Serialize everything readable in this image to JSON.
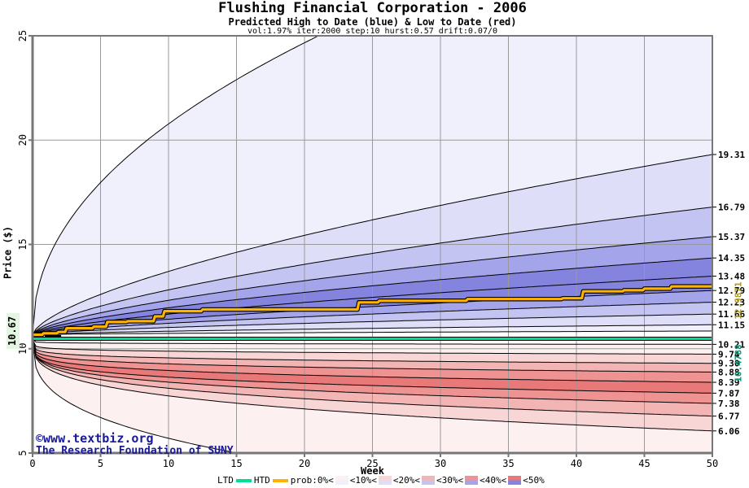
{
  "header": {
    "title": "Flushing Financial Corporation - 2006",
    "subtitle": "Predicted High to Date (blue) &  Low to Date (red)",
    "params": "vol:1.97% iter:2000 step:10 hurst:0.57 drift:0.07/0"
  },
  "watermark": {
    "line1": "©www.textbiz.org",
    "line2": "The Research Foundation of SUNY"
  },
  "axis": {
    "xlabel": "Week",
    "ylabel": "Price ($)",
    "x_ticks": [
      "0",
      "5",
      "10",
      "15",
      "20",
      "25",
      "30",
      "35",
      "40",
      "45",
      "50"
    ],
    "y_ticks": [
      "5",
      "10",
      "15",
      "20",
      "25"
    ],
    "xlim": [
      0,
      50
    ],
    "ylim": [
      5,
      25
    ]
  },
  "annotations": {
    "start_price": "10.67",
    "htd_final": "12.9871",
    "ltd_value": "10.4788"
  },
  "legend": {
    "ltd_label": "LTD",
    "htd_label": "HTD",
    "prob_labels": [
      "prob:0%<",
      "<10%<",
      "<20%<",
      "<30%<",
      "<40%<",
      "<50%"
    ]
  },
  "palette": {
    "blue_bands": [
      "#F0F0FC",
      "#DEDEF8",
      "#C4C4F2",
      "#A4A4EA",
      "#8484DE"
    ],
    "red_bands": [
      "#FDF0F0",
      "#F9D6D6",
      "#F3B4B4",
      "#EE9292",
      "#E97878"
    ],
    "ltd_line": "#00DD99",
    "htd_line": "#FFB300",
    "ltd_text": "#009977",
    "htd_text": "#B89C00",
    "grid": "#999999",
    "frame": "#777777",
    "copyright": "#1A1A99",
    "start_label_bg": "#E2F6E2"
  },
  "chart_data": {
    "type": "area",
    "subtype": "probability-fan",
    "title": "Flushing Financial Corporation - 2006",
    "xlabel": "Week",
    "ylabel": "Price ($)",
    "x_range": [
      0,
      50
    ],
    "y_range": [
      5,
      25
    ],
    "grid": true,
    "high_boundaries": [
      {
        "label": "max",
        "start": 10.67,
        "end": 32.2,
        "alpha": 0.47
      },
      {
        "label": "19.31",
        "start": 10.67,
        "end": 19.31,
        "alpha": 0.65
      },
      {
        "label": "16.79",
        "start": 10.67,
        "end": 16.79,
        "alpha": 0.65
      },
      {
        "label": "15.37",
        "start": 10.67,
        "end": 15.37,
        "alpha": 0.65
      },
      {
        "label": "14.35",
        "start": 10.67,
        "end": 14.35,
        "alpha": 0.65
      },
      {
        "label": "13.48",
        "start": 10.67,
        "end": 13.48,
        "alpha": 0.65
      },
      {
        "label": "12.79",
        "start": 10.67,
        "end": 12.79,
        "alpha": 0.65
      },
      {
        "label": "12.23",
        "start": 10.67,
        "end": 12.23,
        "alpha": 0.65
      },
      {
        "label": "11.66",
        "start": 10.67,
        "end": 11.66,
        "alpha": 0.65
      },
      {
        "label": "11.15",
        "start": 10.67,
        "end": 11.15,
        "alpha": 0.65
      },
      {
        "label": "min",
        "start": 10.67,
        "end": 10.85,
        "alpha": 0.65
      }
    ],
    "high_band_color_index": [
      0,
      1,
      2,
      3,
      4,
      4,
      3,
      2,
      1,
      0
    ],
    "low_boundaries": [
      {
        "label": "10.21",
        "start": 10.45,
        "end": 10.21,
        "alpha": 0.12
      },
      {
        "label": "9.74",
        "start": 10.45,
        "end": 9.74,
        "alpha": 0.14
      },
      {
        "label": "9.30",
        "start": 10.45,
        "end": 9.3,
        "alpha": 0.16
      },
      {
        "label": "8.88",
        "start": 10.45,
        "end": 8.88,
        "alpha": 0.18
      },
      {
        "label": "8.39",
        "start": 10.45,
        "end": 8.39,
        "alpha": 0.2
      },
      {
        "label": "7.87",
        "start": 10.45,
        "end": 7.87,
        "alpha": 0.22
      },
      {
        "label": "7.38",
        "start": 10.45,
        "end": 7.38,
        "alpha": 0.25
      },
      {
        "label": "6.77",
        "start": 10.45,
        "end": 6.77,
        "alpha": 0.28
      },
      {
        "label": "6.06",
        "start": 10.45,
        "end": 6.06,
        "alpha": 0.3
      },
      {
        "label": "min",
        "start": 10.45,
        "end": 2.25,
        "alpha": 0.34
      }
    ],
    "low_band_color_index": [
      0,
      1,
      2,
      3,
      4,
      3,
      2,
      1,
      0
    ],
    "htd_median_steps": [
      [
        0,
        10.67
      ],
      [
        0.7,
        10.67
      ],
      [
        0.8,
        10.74
      ],
      [
        1.8,
        10.74
      ],
      [
        1.9,
        10.8
      ],
      [
        2.4,
        10.8
      ],
      [
        2.5,
        10.98
      ],
      [
        4.4,
        10.98
      ],
      [
        4.5,
        11.06
      ],
      [
        5.4,
        11.06
      ],
      [
        5.5,
        11.28
      ],
      [
        6.9,
        11.28
      ],
      [
        7,
        11.32
      ],
      [
        8.9,
        11.32
      ],
      [
        9,
        11.55
      ],
      [
        9.6,
        11.55
      ],
      [
        9.7,
        11.8
      ],
      [
        12.4,
        11.8
      ],
      [
        12.5,
        11.88
      ],
      [
        23.9,
        11.88
      ],
      [
        24,
        12.22
      ],
      [
        25.4,
        12.22
      ],
      [
        25.5,
        12.3
      ],
      [
        31.9,
        12.3
      ],
      [
        32,
        12.38
      ],
      [
        38.9,
        12.38
      ],
      [
        39,
        12.42
      ],
      [
        40.4,
        12.42
      ],
      [
        40.5,
        12.75
      ],
      [
        43.4,
        12.75
      ],
      [
        43.5,
        12.8
      ],
      [
        44.9,
        12.8
      ],
      [
        45,
        12.88
      ],
      [
        46.9,
        12.88
      ],
      [
        47,
        12.9871
      ],
      [
        50,
        12.9871
      ]
    ],
    "ltd_line_value": 10.4788,
    "start_marker": {
      "w1": 0.9,
      "w2": 2.1,
      "value": 10.6
    },
    "right_axis_labels": [
      {
        "value": 19.31,
        "text": "19.31"
      },
      {
        "value": 16.79,
        "text": "16.79"
      },
      {
        "value": 15.37,
        "text": "15.37"
      },
      {
        "value": 14.35,
        "text": "14.35"
      },
      {
        "value": 13.48,
        "text": "13.48"
      },
      {
        "value": 12.79,
        "text": "12.79"
      },
      {
        "value": 12.23,
        "text": "12.23"
      },
      {
        "value": 11.66,
        "text": "11.66"
      },
      {
        "value": 11.15,
        "text": "11.15"
      },
      {
        "value": 10.21,
        "text": "10.21"
      },
      {
        "value": 9.74,
        "text": "9.74"
      },
      {
        "value": 9.3,
        "text": "9.30"
      },
      {
        "value": 8.88,
        "text": "8.88"
      },
      {
        "value": 8.39,
        "text": "8.39"
      },
      {
        "value": 7.87,
        "text": "7.87"
      },
      {
        "value": 7.38,
        "text": "7.38"
      },
      {
        "value": 6.77,
        "text": "6.77"
      },
      {
        "value": 6.06,
        "text": "6.06"
      }
    ]
  }
}
